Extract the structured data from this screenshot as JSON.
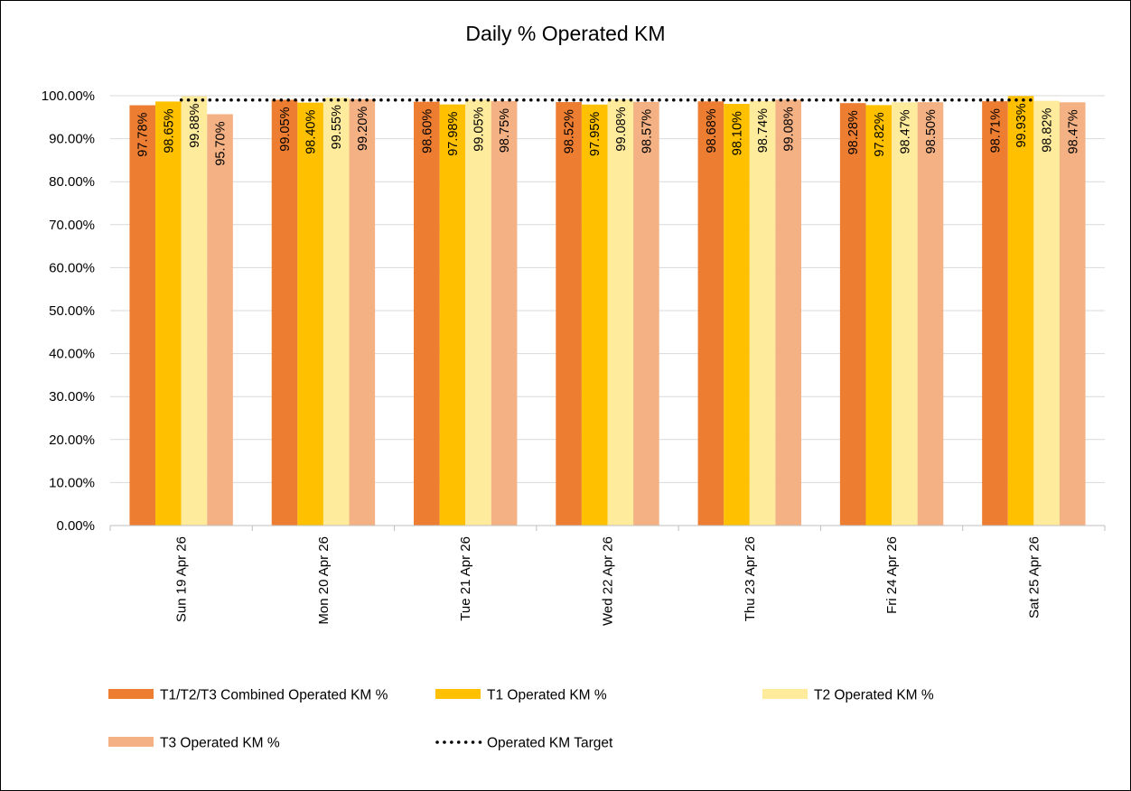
{
  "chart_data": {
    "type": "bar",
    "title": "Daily % Operated KM",
    "xlabel": "",
    "ylabel": "",
    "ylim": [
      0,
      100
    ],
    "y_ticks": [
      "0.00%",
      "10.00%",
      "20.00%",
      "30.00%",
      "40.00%",
      "50.00%",
      "60.00%",
      "70.00%",
      "80.00%",
      "90.00%",
      "100.00%"
    ],
    "grid": true,
    "legend_position": "bottom",
    "categories": [
      "Sun 19 Apr 26",
      "Mon 20 Apr 26",
      "Tue 21 Apr 26",
      "Wed 22 Apr 26",
      "Thu 23 Apr 26",
      "Fri 24 Apr 26",
      "Sat 25 Apr 26"
    ],
    "series": [
      {
        "name": "T1/T2/T3 Combined Operated KM %",
        "color": "#ED7D31",
        "values": [
          97.78,
          99.05,
          98.6,
          98.52,
          98.68,
          98.28,
          98.71
        ],
        "labels": [
          "97.78%",
          "99.05%",
          "98.60%",
          "98.52%",
          "98.68%",
          "98.28%",
          "98.71%"
        ]
      },
      {
        "name": "T1 Operated KM %",
        "color": "#FFC000",
        "values": [
          98.65,
          98.4,
          97.98,
          97.95,
          98.1,
          97.82,
          99.93
        ],
        "labels": [
          "98.65%",
          "98.40%",
          "97.98%",
          "97.95%",
          "98.10%",
          "97.82%",
          "99.93%"
        ]
      },
      {
        "name": "T2 Operated KM %",
        "color": "#FFEB9C",
        "values": [
          99.88,
          99.55,
          99.05,
          99.08,
          98.74,
          98.47,
          98.82
        ],
        "labels": [
          "99.88%",
          "99.55%",
          "99.05%",
          "99.08%",
          "98.74%",
          "98.47%",
          "98.82%"
        ]
      },
      {
        "name": "T3 Operated KM %",
        "color": "#F4B183",
        "values": [
          95.7,
          99.2,
          98.75,
          98.57,
          99.08,
          98.5,
          98.47
        ],
        "labels": [
          "95.70%",
          "99.20%",
          "98.75%",
          "98.57%",
          "99.08%",
          "98.50%",
          "98.47%"
        ]
      }
    ],
    "target": {
      "name": "Operated KM Target",
      "type": "line",
      "style": "dotted",
      "color": "#000000",
      "value": 99
    }
  }
}
